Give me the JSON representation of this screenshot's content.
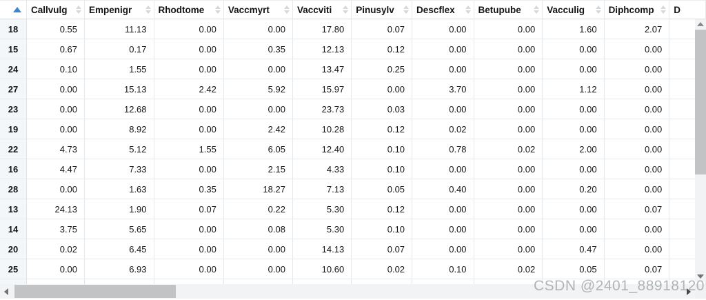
{
  "table": {
    "corner": {
      "sort_state": "ascending",
      "sort_color": "#3a87cf"
    },
    "columns": [
      {
        "label": "Callvulg",
        "sortable": true
      },
      {
        "label": "Empenigr",
        "sortable": true
      },
      {
        "label": "Rhodtome",
        "sortable": true
      },
      {
        "label": "Vaccmyrt",
        "sortable": true
      },
      {
        "label": "Vaccviti",
        "sortable": true
      },
      {
        "label": "Pinusylv",
        "sortable": true
      },
      {
        "label": "Descflex",
        "sortable": true
      },
      {
        "label": "Betupube",
        "sortable": true
      },
      {
        "label": "Vacculig",
        "sortable": true
      },
      {
        "label": "Diphcomp",
        "sortable": true
      },
      {
        "label": "D",
        "sortable": false,
        "truncated": true
      }
    ],
    "rows": [
      {
        "name": "18",
        "values": [
          "0.55",
          "11.13",
          "0.00",
          "0.00",
          "17.80",
          "0.07",
          "0.00",
          "0.00",
          "1.60",
          "2.07"
        ]
      },
      {
        "name": "15",
        "values": [
          "0.67",
          "0.17",
          "0.00",
          "0.35",
          "12.13",
          "0.12",
          "0.00",
          "0.00",
          "0.00",
          "0.00"
        ]
      },
      {
        "name": "24",
        "values": [
          "0.10",
          "1.55",
          "0.00",
          "0.00",
          "13.47",
          "0.25",
          "0.00",
          "0.00",
          "0.00",
          "0.00"
        ]
      },
      {
        "name": "27",
        "values": [
          "0.00",
          "15.13",
          "2.42",
          "5.92",
          "15.97",
          "0.00",
          "3.70",
          "0.00",
          "1.12",
          "0.00"
        ]
      },
      {
        "name": "23",
        "values": [
          "0.00",
          "12.68",
          "0.00",
          "0.00",
          "23.73",
          "0.03",
          "0.00",
          "0.00",
          "0.00",
          "0.00"
        ]
      },
      {
        "name": "19",
        "values": [
          "0.00",
          "8.92",
          "0.00",
          "2.42",
          "10.28",
          "0.12",
          "0.02",
          "0.00",
          "0.00",
          "0.00"
        ]
      },
      {
        "name": "22",
        "values": [
          "4.73",
          "5.12",
          "1.55",
          "6.05",
          "12.40",
          "0.10",
          "0.78",
          "0.02",
          "2.00",
          "0.00"
        ]
      },
      {
        "name": "16",
        "values": [
          "4.47",
          "7.33",
          "0.00",
          "2.15",
          "4.33",
          "0.10",
          "0.00",
          "0.00",
          "0.00",
          "0.00"
        ]
      },
      {
        "name": "28",
        "values": [
          "0.00",
          "1.63",
          "0.35",
          "18.27",
          "7.13",
          "0.05",
          "0.40",
          "0.00",
          "0.20",
          "0.00"
        ]
      },
      {
        "name": "13",
        "values": [
          "24.13",
          "1.90",
          "0.07",
          "0.22",
          "5.30",
          "0.12",
          "0.00",
          "0.00",
          "0.00",
          "0.07"
        ]
      },
      {
        "name": "14",
        "values": [
          "3.75",
          "5.65",
          "0.00",
          "0.08",
          "5.30",
          "0.10",
          "0.00",
          "0.00",
          "0.00",
          "0.00"
        ]
      },
      {
        "name": "20",
        "values": [
          "0.02",
          "6.45",
          "0.00",
          "0.00",
          "14.13",
          "0.07",
          "0.00",
          "0.00",
          "0.47",
          "0.00"
        ]
      },
      {
        "name": "25",
        "values": [
          "0.00",
          "6.93",
          "0.00",
          "0.00",
          "10.60",
          "0.02",
          "0.10",
          "0.02",
          "0.05",
          "0.07"
        ]
      }
    ]
  },
  "watermark": "CSDN @2401_88918120",
  "colors": {
    "sort_arrow_blue": "#3a87cf",
    "sort_arrow_idle": "#d4d8db",
    "rowname_bg": "#f3f7f9",
    "scroll_track": "#f2f3f4",
    "scroll_thumb": "#c1c3c5"
  }
}
